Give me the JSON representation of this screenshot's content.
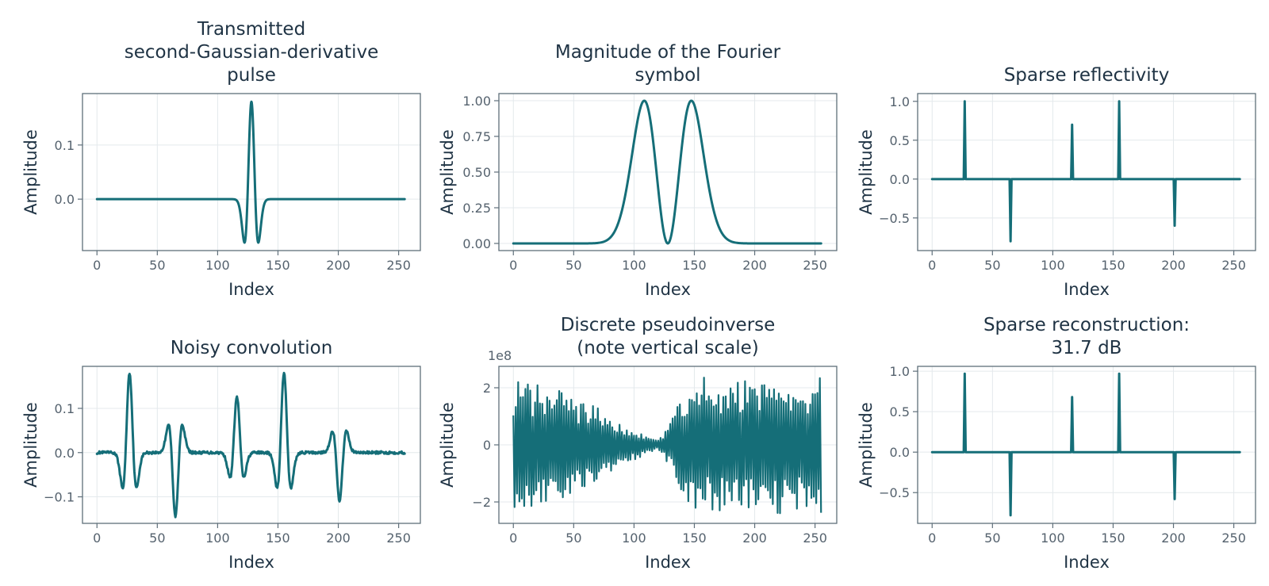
{
  "colors": {
    "line": "#156e78",
    "text": "#1f3344",
    "tick": "#55626e",
    "frame": "#5f6f7a",
    "grid": "#e4e9ec"
  },
  "chart_data": [
    {
      "id": "pulse",
      "type": "line",
      "title": "Transmitted\nsecond-Gaussian-derivative\npulse",
      "xlabel": "Index",
      "ylabel": "Amplitude",
      "xlim": [
        -12,
        268
      ],
      "ylim": [
        -0.095,
        0.195
      ],
      "xticks": [
        0,
        50,
        100,
        150,
        200,
        250
      ],
      "yticks": [
        0.0,
        0.1
      ],
      "ytick_labels": [
        "0.0",
        "0.1"
      ],
      "grid": true,
      "series": [
        {
          "generator": "ricker",
          "x_range": [
            0,
            255
          ],
          "params": {
            "center": 128,
            "amplitude": 0.18,
            "sigma": 3.3
          }
        }
      ]
    },
    {
      "id": "fourier",
      "type": "line",
      "title": "Magnitude of the Fourier\nsymbol",
      "xlabel": "Index",
      "ylabel": "Amplitude",
      "xlim": [
        -12,
        268
      ],
      "ylim": [
        -0.05,
        1.05
      ],
      "xticks": [
        0,
        50,
        100,
        150,
        200,
        250
      ],
      "yticks": [
        0.0,
        0.25,
        0.5,
        0.75,
        1.0
      ],
      "ytick_labels": [
        "0.00",
        "0.25",
        "0.50",
        "0.75",
        "1.00"
      ],
      "grid": true,
      "series": [
        {
          "generator": "fourier_magnitude",
          "x_range": [
            0,
            255
          ],
          "params": {
            "center": 128,
            "width": 19.5
          }
        }
      ]
    },
    {
      "id": "reflectivity",
      "type": "line",
      "title": "Sparse reflectivity",
      "xlabel": "Index",
      "ylabel": "Amplitude",
      "xlim": [
        -12,
        268
      ],
      "ylim": [
        -0.92,
        1.1
      ],
      "xticks": [
        0,
        50,
        100,
        150,
        200,
        250
      ],
      "yticks": [
        -0.5,
        0.0,
        0.5,
        1.0
      ],
      "ytick_labels": [
        "−0.5",
        "0.0",
        "0.5",
        "1.0"
      ],
      "grid": true,
      "series": [
        {
          "generator": "spikes",
          "x_range": [
            0,
            255
          ],
          "spikes": [
            [
              27,
              1.0
            ],
            [
              65,
              -0.8
            ],
            [
              116,
              0.7
            ],
            [
              155,
              1.0
            ],
            [
              201,
              -0.6
            ]
          ]
        }
      ]
    },
    {
      "id": "noisy",
      "type": "line",
      "title": "Noisy convolution",
      "xlabel": "Index",
      "ylabel": "Amplitude",
      "xlim": [
        -12,
        268
      ],
      "ylim": [
        -0.16,
        0.195
      ],
      "xticks": [
        0,
        50,
        100,
        150,
        200,
        250
      ],
      "yticks": [
        -0.1,
        0.0,
        0.1
      ],
      "ytick_labels": [
        "−0.1",
        "0.0",
        "0.1"
      ],
      "grid": true,
      "series": [
        {
          "generator": "convolution",
          "x_range": [
            0,
            255
          ],
          "spikes": [
            [
              27,
              1.0
            ],
            [
              65,
              -0.8
            ],
            [
              116,
              0.7
            ],
            [
              155,
              1.0
            ],
            [
              201,
              -0.6
            ]
          ],
          "params": {
            "amplitude": 0.18,
            "sigma": 3.3,
            "noise": 0.003
          }
        }
      ]
    },
    {
      "id": "pseudoinverse",
      "type": "line",
      "title": "Discrete pseudoinverse\n(note vertical scale)",
      "xlabel": "Index",
      "ylabel": "Amplitude",
      "offset_label": "1e8",
      "xlim": [
        -12,
        268
      ],
      "ylim": [
        -2.75,
        2.75
      ],
      "xticks": [
        0,
        50,
        100,
        150,
        200,
        250
      ],
      "yticks": [
        -2,
        0,
        2
      ],
      "ytick_labels": [
        "−2",
        "0",
        "2"
      ],
      "grid": true,
      "series": [
        {
          "generator": "oscillation",
          "x_range": [
            0,
            255
          ],
          "params": {
            "envelope_peak": 2.2,
            "envelope_min": 0.15,
            "min_at": 120,
            "right_peak": 2.4
          }
        }
      ]
    },
    {
      "id": "reconstruction",
      "type": "line",
      "title": "Sparse reconstruction:\n31.7 dB",
      "xlabel": "Index",
      "ylabel": "Amplitude",
      "xlim": [
        -12,
        268
      ],
      "ylim": [
        -0.88,
        1.06
      ],
      "xticks": [
        0,
        50,
        100,
        150,
        200,
        250
      ],
      "yticks": [
        -0.5,
        0.0,
        0.5,
        1.0
      ],
      "ytick_labels": [
        "−0.5",
        "0.0",
        "0.5",
        "1.0"
      ],
      "grid": true,
      "series": [
        {
          "generator": "spikes",
          "x_range": [
            0,
            255
          ],
          "spikes": [
            [
              27,
              0.97
            ],
            [
              65,
              -0.78
            ],
            [
              116,
              0.68
            ],
            [
              155,
              0.97
            ],
            [
              201,
              -0.58
            ]
          ]
        }
      ]
    }
  ]
}
